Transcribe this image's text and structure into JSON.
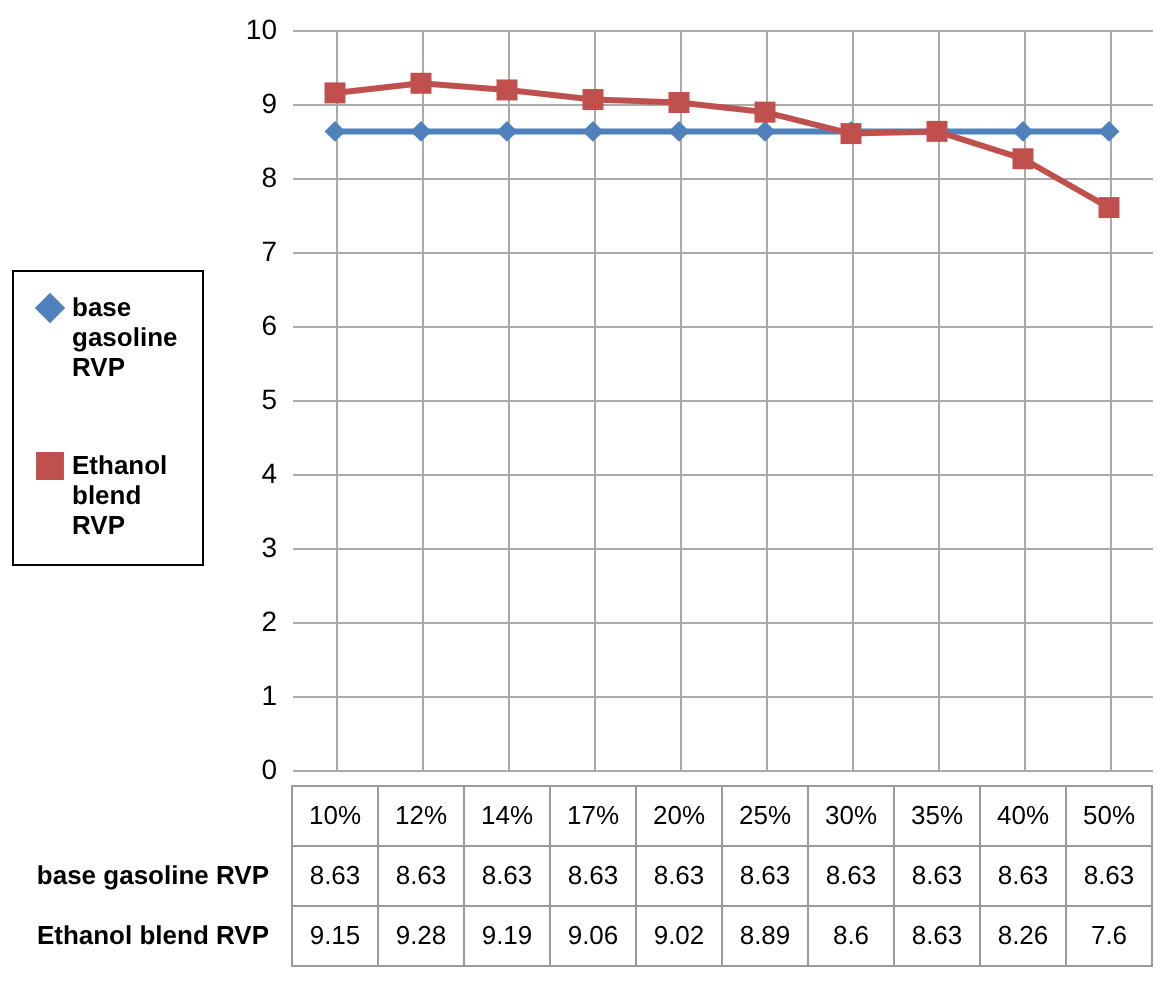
{
  "chart_data": {
    "type": "line",
    "categories": [
      "10%",
      "12%",
      "14%",
      "17%",
      "20%",
      "25%",
      "30%",
      "35%",
      "40%",
      "50%"
    ],
    "series": [
      {
        "name": "base gasoline RVP",
        "color": "#4f81bd",
        "marker": "diamond",
        "values": [
          8.63,
          8.63,
          8.63,
          8.63,
          8.63,
          8.63,
          8.63,
          8.63,
          8.63,
          8.63
        ]
      },
      {
        "name": "Ethanol blend RVP",
        "color": "#c0504d",
        "marker": "square",
        "values": [
          9.15,
          9.28,
          9.19,
          9.06,
          9.02,
          8.89,
          8.6,
          8.63,
          8.26,
          7.6
        ]
      }
    ],
    "ylim": [
      0,
      10
    ],
    "yticks": [
      0,
      1,
      2,
      3,
      4,
      5,
      6,
      7,
      8,
      9,
      10
    ],
    "grid": true,
    "legend": "left",
    "data_labels": true
  }
}
